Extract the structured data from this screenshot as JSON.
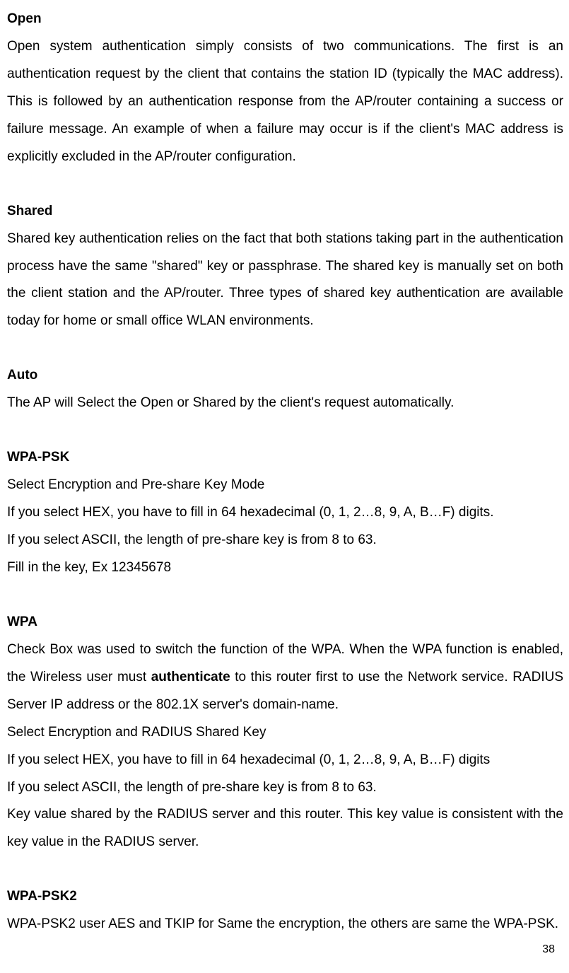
{
  "page": {
    "background_color": "#ffffff",
    "text_color": "#000000",
    "font_family": "Arial, sans-serif",
    "font_size": 19,
    "line_height": 2.05,
    "page_number": "38"
  },
  "sections": {
    "open": {
      "heading": "Open",
      "body": "Open system authentication simply consists of two communications. The first is an authentication request by the client that contains the station ID (typically the MAC address). This is followed by an authentication response from the AP/router containing a success or failure message. An example of when a failure may occur is if the client's MAC address is explicitly excluded in the AP/router configuration."
    },
    "shared": {
      "heading": "Shared",
      "body": "Shared key authentication relies on the fact that both stations taking part in the authentication process have the same \"shared\" key or passphrase. The shared key is manually set on both the client station and the AP/router. Three types of shared key authentication are available today for home or small office WLAN environments."
    },
    "auto": {
      "heading": "Auto",
      "body": "The AP will Select the Open or Shared by the client's request automatically."
    },
    "wpa_psk": {
      "heading": "WPA-PSK",
      "line1": "Select Encryption and Pre-share Key Mode",
      "line2": "If you select HEX, you have to fill in 64 hexadecimal (0, 1, 2…8, 9, A, B…F) digits.",
      "line3": "If you select ASCII, the length of pre-share key is from 8 to 63.",
      "line4": "Fill in the key, Ex 12345678"
    },
    "wpa": {
      "heading": "WPA",
      "body_pre": "Check Box was used to switch the function of the WPA. When the WPA function is enabled, the Wireless user must ",
      "body_bold": "authenticate",
      "body_post": " to this router first to use the Network service. RADIUS Server IP address or the 802.1X server's domain-name.",
      "line2": "Select Encryption and RADIUS Shared Key",
      "line3": "If you select HEX, you have to fill in 64 hexadecimal (0, 1, 2…8, 9, A, B…F) digits",
      "line4": "If you select ASCII, the length of pre-share key is from 8 to 63.",
      "line5": "Key value shared by the RADIUS server and this router. This key value is consistent with the key value in the RADIUS server."
    },
    "wpa_psk2": {
      "heading": "WPA-PSK2",
      "body": "WPA-PSK2 user AES and TKIP for Same the encryption, the others are same the WPA-PSK."
    }
  }
}
